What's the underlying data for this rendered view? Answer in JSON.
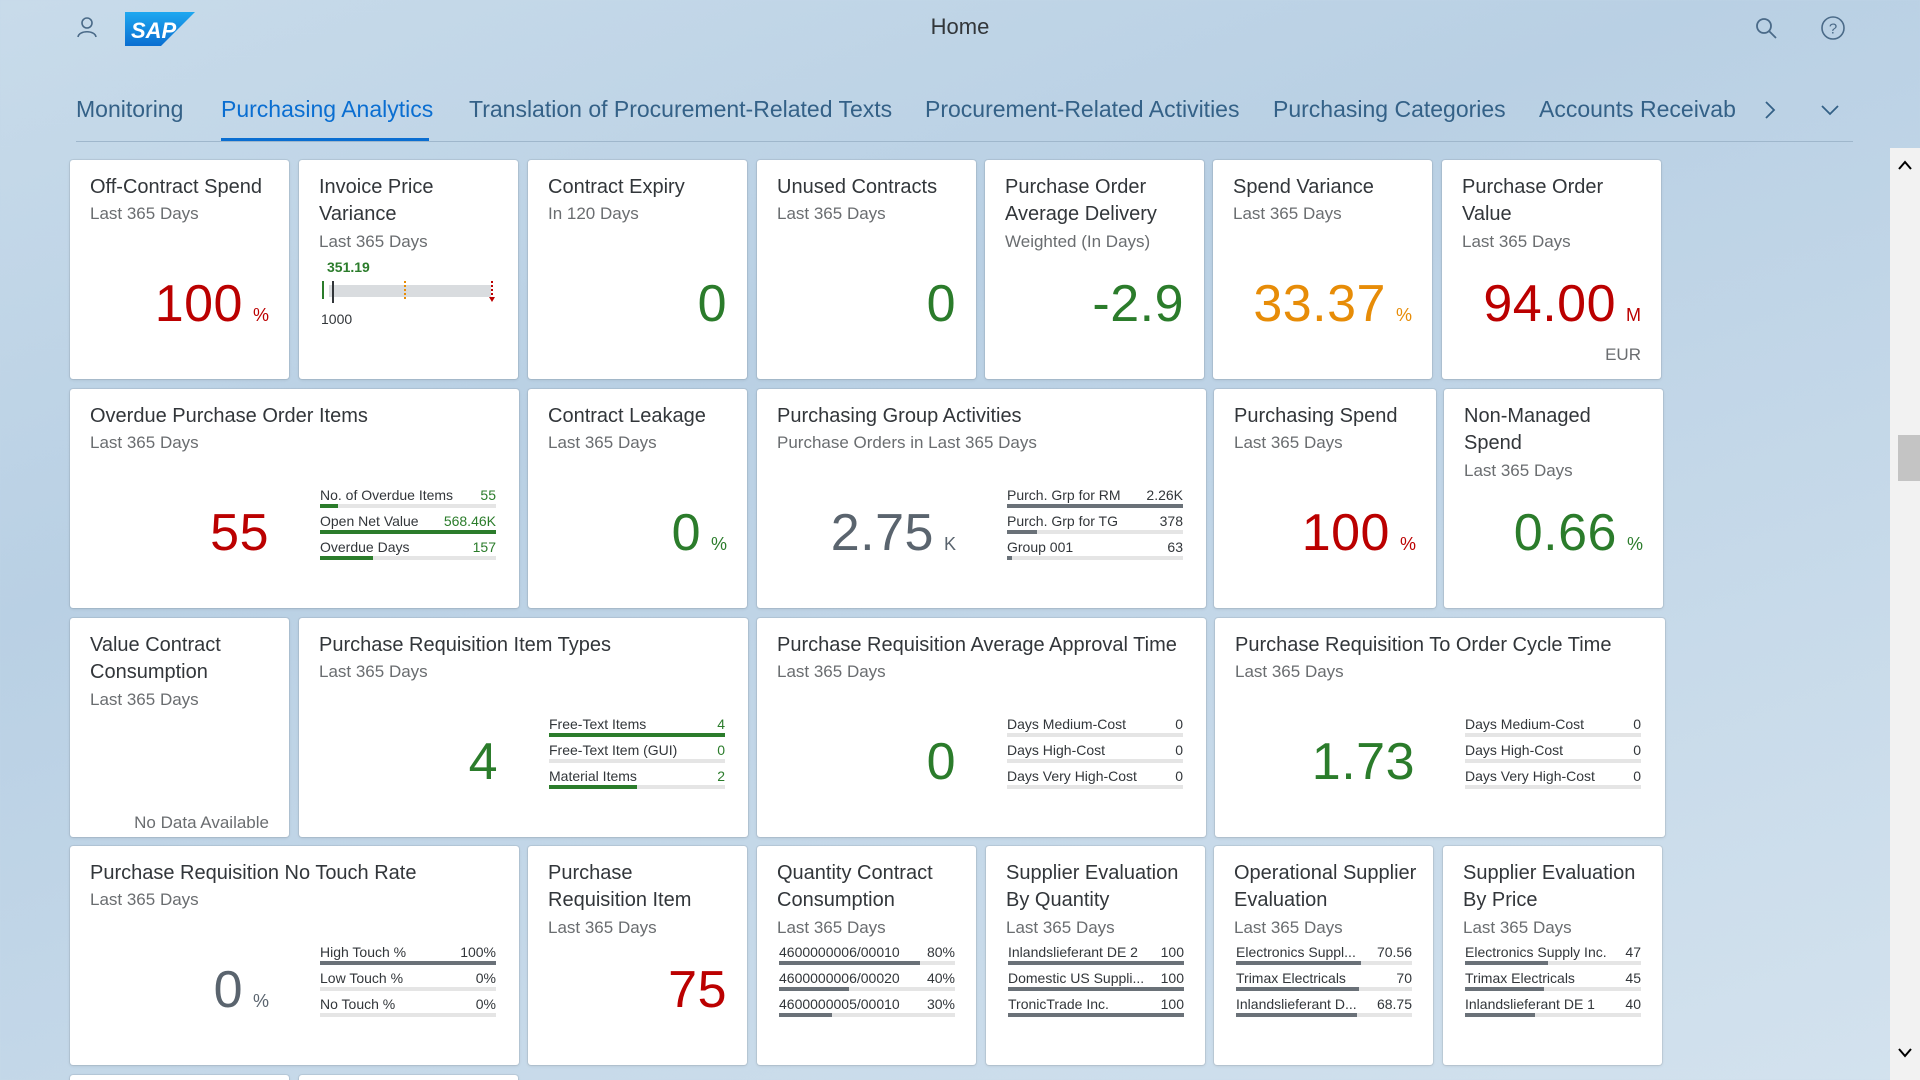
{
  "header": {
    "title": "Home",
    "user_icon": "person-icon",
    "logo_text": "SAP",
    "search_icon": "search-icon",
    "help_icon": "help-icon"
  },
  "tabs": [
    {
      "label": "Monitoring",
      "active": false
    },
    {
      "label": "Purchasing Analytics",
      "active": true
    },
    {
      "label": "Translation of Procurement-Related Texts",
      "active": false
    },
    {
      "label": "Procurement-Related Activities",
      "active": false
    },
    {
      "label": "Purchasing Categories",
      "active": false
    },
    {
      "label": "Accounts Receivab",
      "active": false
    }
  ],
  "tiles": {
    "off_contract_spend": {
      "title": "Off-Contract Spend",
      "subtitle": "Last 365 Days",
      "value": "100",
      "unit": "%"
    },
    "invoice_price_variance": {
      "title": "Invoice Price Variance",
      "subtitle": "Last 365 Days",
      "actual": "351.19",
      "target": "1000"
    },
    "contract_expiry": {
      "title": "Contract Expiry",
      "subtitle": "In 120 Days",
      "value": "0"
    },
    "unused_contracts": {
      "title": "Unused Contracts",
      "subtitle": "Last 365 Days",
      "value": "0"
    },
    "po_avg_delivery": {
      "title": "Purchase Order Average Delivery",
      "subtitle": "Weighted (In Days)",
      "value": "-2.9"
    },
    "spend_variance": {
      "title": "Spend Variance",
      "subtitle": "Last 365 Days",
      "value": "33.37",
      "unit": "%"
    },
    "po_value": {
      "title": "Purchase Order Value",
      "subtitle": "Last 365 Days",
      "value": "94.00",
      "unit": "M",
      "currency": "EUR"
    },
    "overdue_po_items": {
      "title": "Overdue Purchase Order Items",
      "subtitle": "Last 365 Days",
      "value": "55",
      "rows": [
        {
          "label": "No. of Overdue Items",
          "value": "55",
          "fill": 0.1
        },
        {
          "label": "Open Net Value",
          "value": "568.46K",
          "fill": 1.0
        },
        {
          "label": "Overdue Days",
          "value": "157",
          "fill": 0.3
        }
      ]
    },
    "contract_leakage": {
      "title": "Contract Leakage",
      "subtitle": "Last 365 Days",
      "value": "0",
      "unit": "%"
    },
    "purchasing_group_activities": {
      "title": "Purchasing Group Activities",
      "subtitle": "Purchase Orders in Last 365 Days",
      "value": "2.75",
      "unit": "K",
      "rows": [
        {
          "label": "Purch. Grp for RM",
          "value": "2.26K",
          "fill": 1.0
        },
        {
          "label": "Purch. Grp for TG",
          "value": "378",
          "fill": 0.17
        },
        {
          "label": "Group 001",
          "value": "63",
          "fill": 0.03
        }
      ]
    },
    "purchasing_spend": {
      "title": "Purchasing Spend",
      "subtitle": "Last 365 Days",
      "value": "100",
      "unit": "%"
    },
    "non_managed_spend": {
      "title": "Non-Managed Spend",
      "subtitle": "Last 365 Days",
      "value": "0.66",
      "unit": "%"
    },
    "value_contract_consumption": {
      "title": "Value Contract Consumption",
      "subtitle": "Last 365 Days",
      "no_data": "No Data Available"
    },
    "pr_item_types": {
      "title": "Purchase Requisition Item Types",
      "subtitle": "Last 365 Days",
      "value": "4",
      "rows": [
        {
          "label": "Free-Text Items",
          "value": "4",
          "fill": 1.0
        },
        {
          "label": "Free-Text Item (GUI)",
          "value": "0",
          "fill": 0.0
        },
        {
          "label": "Material Items",
          "value": "2",
          "fill": 0.5
        }
      ]
    },
    "pr_avg_approval_time": {
      "title": "Purchase Requisition Average Approval Time",
      "subtitle": "Last 365 Days",
      "value": "0",
      "rows": [
        {
          "label": "Days Medium-Cost",
          "value": "0",
          "fill": 0.0
        },
        {
          "label": "Days High-Cost",
          "value": "0",
          "fill": 0.0
        },
        {
          "label": "Days Very High-Cost",
          "value": "0",
          "fill": 0.0
        }
      ]
    },
    "pr_to_order_cycle": {
      "title": "Purchase Requisition To Order Cycle Time",
      "subtitle": "Last 365 Days",
      "value": "1.73",
      "rows": [
        {
          "label": "Days Medium-Cost",
          "value": "0",
          "fill": 0.0
        },
        {
          "label": "Days High-Cost",
          "value": "0",
          "fill": 0.0
        },
        {
          "label": "Days Very High-Cost",
          "value": "0",
          "fill": 0.0
        }
      ]
    },
    "pr_no_touch_rate": {
      "title": "Purchase Requisition No Touch Rate",
      "subtitle": "Last 365 Days",
      "value": "0",
      "unit": "%",
      "rows": [
        {
          "label": "High Touch %",
          "value": "100%",
          "fill": 1.0
        },
        {
          "label": "Low Touch %",
          "value": "0%",
          "fill": 0.0
        },
        {
          "label": "No Touch %",
          "value": "0%",
          "fill": 0.0
        }
      ]
    },
    "pr_item": {
      "title": "Purchase Requisition Item",
      "subtitle": "Last 365 Days",
      "value": "75"
    },
    "qty_contract_consumption": {
      "title": "Quantity Contract Consumption",
      "subtitle": "Last 365 Days",
      "rows": [
        {
          "label": "4600000006/00010",
          "value": "80%",
          "fill": 0.8
        },
        {
          "label": "4600000006/00020",
          "value": "40%",
          "fill": 0.4
        },
        {
          "label": "4600000005/00010",
          "value": "30%",
          "fill": 0.3
        }
      ]
    },
    "supplier_eval_qty": {
      "title": "Supplier Evaluation By Quantity",
      "subtitle": "Last 365 Days",
      "rows": [
        {
          "label": "Inlandslieferant DE 2",
          "value": "100",
          "fill": 1.0
        },
        {
          "label": "Domestic US Suppli...",
          "value": "100",
          "fill": 1.0
        },
        {
          "label": "TronicTrade Inc.",
          "value": "100",
          "fill": 1.0
        }
      ]
    },
    "operational_supplier_eval": {
      "title": "Operational Supplier Evaluation",
      "subtitle": "Last 365 Days",
      "rows": [
        {
          "label": "Electronics Suppl...",
          "value": "70.56",
          "fill": 0.71
        },
        {
          "label": "Trimax Electricals",
          "value": "70",
          "fill": 0.7
        },
        {
          "label": "Inlandslieferant D...",
          "value": "68.75",
          "fill": 0.69
        }
      ]
    },
    "supplier_eval_price": {
      "title": "Supplier Evaluation By Price",
      "subtitle": "Last 365 Days",
      "rows": [
        {
          "label": "Electronics Supply Inc.",
          "value": "47",
          "fill": 0.47
        },
        {
          "label": "Trimax Electricals",
          "value": "45",
          "fill": 0.45
        },
        {
          "label": "Inlandslieferant DE 1",
          "value": "40",
          "fill": 0.4
        }
      ]
    }
  }
}
